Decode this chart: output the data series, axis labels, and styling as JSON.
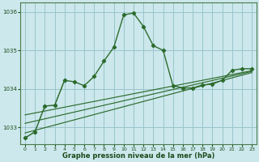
{
  "title": "Graphe pression niveau de la mer (hPa)",
  "background_color": "#cce8ec",
  "grid_color": "#99c4cc",
  "line_color": "#2d6b2d",
  "xlim": [
    -0.5,
    23.5
  ],
  "ylim": [
    1032.55,
    1036.25
  ],
  "yticks": [
    1033,
    1034,
    1035,
    1036
  ],
  "xticks": [
    0,
    1,
    2,
    3,
    4,
    5,
    6,
    7,
    8,
    9,
    10,
    11,
    12,
    13,
    14,
    15,
    16,
    17,
    18,
    19,
    20,
    21,
    22,
    23
  ],
  "main_series_x": [
    0,
    1,
    2,
    3,
    4,
    5,
    6,
    7,
    8,
    9,
    10,
    11,
    12,
    13,
    14,
    15,
    16,
    17,
    18,
    19,
    20,
    21,
    22,
    23
  ],
  "pressure_main": [
    1032.72,
    1032.88,
    1033.55,
    1033.57,
    1034.22,
    1034.18,
    1034.08,
    1034.32,
    1034.72,
    1035.08,
    1035.92,
    1035.97,
    1035.62,
    1035.12,
    1035.0,
    1034.08,
    1034.02,
    1034.02,
    1034.1,
    1034.12,
    1034.22,
    1034.48,
    1034.52,
    1034.52
  ],
  "trend_line1_x": [
    0,
    23
  ],
  "trend_line1_y": [
    1032.85,
    1034.42
  ],
  "trend_line2_x": [
    0,
    23
  ],
  "trend_line2_y": [
    1033.1,
    1034.45
  ],
  "trend_line3_x": [
    0,
    23
  ],
  "trend_line3_y": [
    1033.32,
    1034.47
  ],
  "dotted_series_x": [
    0,
    1,
    2,
    3,
    4
  ],
  "dotted_series_y": [
    1032.72,
    1032.88,
    1033.55,
    1033.57,
    1034.22
  ],
  "xlabel_color": "#1a4a1a",
  "tick_color": "#1a4a1a"
}
